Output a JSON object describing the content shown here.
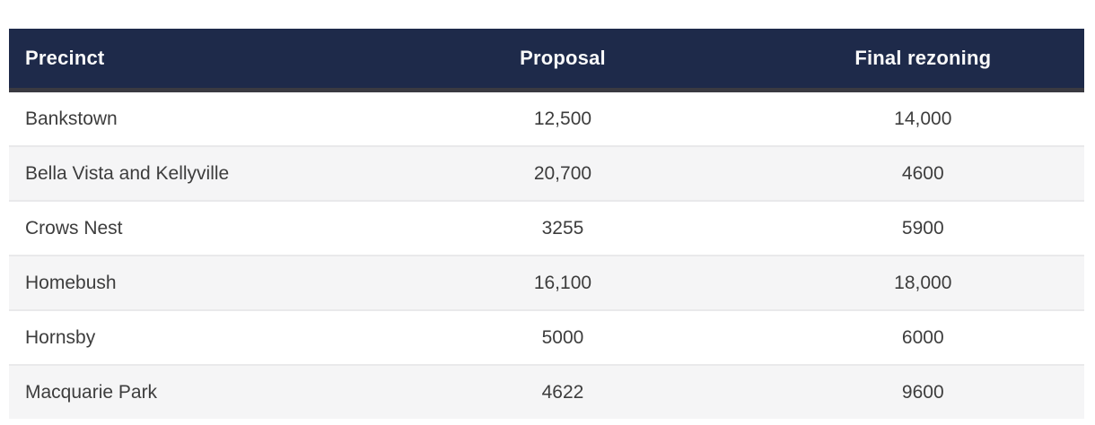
{
  "table": {
    "columns": [
      {
        "label": "Precinct",
        "align": "left"
      },
      {
        "label": "Proposal",
        "align": "center"
      },
      {
        "label": "Final rezoning",
        "align": "center"
      }
    ],
    "rows": [
      {
        "precinct": "Bankstown",
        "proposal": "12,500",
        "final_rezoning": "14,000"
      },
      {
        "precinct": "Bella Vista and Kellyville",
        "proposal": "20,700",
        "final_rezoning": "4600"
      },
      {
        "precinct": "Crows Nest",
        "proposal": "3255",
        "final_rezoning": "5900"
      },
      {
        "precinct": "Homebush",
        "proposal": "16,100",
        "final_rezoning": "18,000"
      },
      {
        "precinct": "Hornsby",
        "proposal": "5000",
        "final_rezoning": "6000"
      },
      {
        "precinct": "Macquarie Park",
        "proposal": "4622",
        "final_rezoning": "9600"
      }
    ]
  },
  "colors": {
    "header_bg": "#1e2a4a",
    "header_text": "#fafafa",
    "header_border": "#3a3a41",
    "stripe_bg": "#f5f5f6",
    "row_divider": "#e9e9eb",
    "body_text": "#3d3d3d"
  },
  "chart_data": {
    "type": "table",
    "columns": [
      "Precinct",
      "Proposal",
      "Final rezoning"
    ],
    "rows": [
      [
        "Bankstown",
        12500,
        14000
      ],
      [
        "Bella Vista and Kellyville",
        20700,
        4600
      ],
      [
        "Crows Nest",
        3255,
        5900
      ],
      [
        "Homebush",
        16100,
        18000
      ],
      [
        "Hornsby",
        5000,
        6000
      ],
      [
        "Macquarie Park",
        4622,
        9600
      ]
    ]
  }
}
